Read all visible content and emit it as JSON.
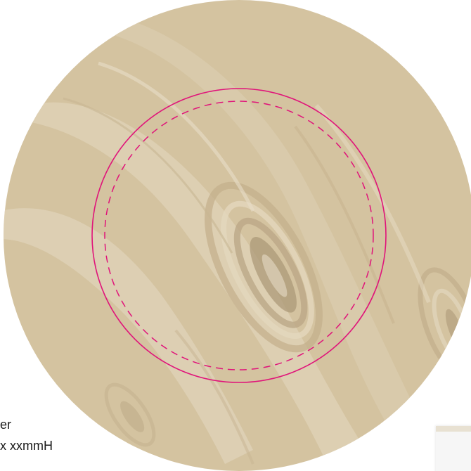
{
  "artwork": {
    "label_lines": [
      "er",
      "x xxmmH"
    ],
    "colors": {
      "background": "#ffffff",
      "material": "#d4c3a0",
      "marble_light": "#e4d8bf",
      "marble_mid": "#cdbb96",
      "marble_dark": "#b9a583",
      "guide_line": "#e0147a",
      "label_text": "#1a1a1a"
    }
  }
}
